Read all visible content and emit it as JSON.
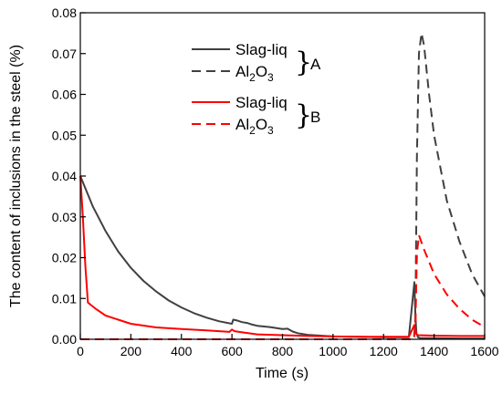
{
  "chart_data": {
    "type": "line",
    "xlabel": "Time (s)",
    "ylabel": "The content of inclusions in the steel (%)",
    "xlim": [
      0,
      1600
    ],
    "ylim": [
      0,
      0.08
    ],
    "xticks": [
      "0",
      "200",
      "400",
      "600",
      "800",
      "1000",
      "1200",
      "1400",
      "1600"
    ],
    "yticks": [
      "0.00",
      "0.01",
      "0.02",
      "0.03",
      "0.04",
      "0.05",
      "0.06",
      "0.07",
      "0.08"
    ],
    "grid": false,
    "legend_position": "top-center",
    "legend_groups": [
      {
        "label": "A",
        "entries": [
          "Slag-liq",
          "Al2O3"
        ]
      },
      {
        "label": "B",
        "entries": [
          "Slag-liq",
          "Al2O3"
        ]
      }
    ],
    "series": [
      {
        "name": "Slag-liq",
        "group": "A",
        "color": "#404040",
        "dash": "solid",
        "x": [
          0,
          50,
          100,
          150,
          200,
          250,
          300,
          350,
          400,
          450,
          500,
          550,
          600,
          605,
          620,
          640,
          660,
          680,
          700,
          750,
          800,
          820,
          840,
          860,
          900,
          950,
          1000,
          1100,
          1200,
          1300,
          1322,
          1326,
          1330,
          1336,
          1345,
          1400,
          1500,
          1600
        ],
        "y": [
          0.04,
          0.0325,
          0.0265,
          0.0215,
          0.0175,
          0.0143,
          0.0117,
          0.0095,
          0.0078,
          0.0064,
          0.0053,
          0.0044,
          0.0038,
          0.0048,
          0.0046,
          0.0042,
          0.004,
          0.0036,
          0.0033,
          0.003,
          0.0025,
          0.0026,
          0.0019,
          0.0015,
          0.0011,
          0.0009,
          0.0007,
          0.0006,
          0.0005,
          0.0005,
          0.014,
          0.006,
          0.0015,
          0.0005,
          0.0003,
          0.0003,
          0.0002,
          0.0002
        ]
      },
      {
        "name": "Al2O3",
        "group": "A",
        "color": "#404040",
        "dash": "dashed",
        "x": [
          0,
          100,
          200,
          400,
          600,
          800,
          1000,
          1200,
          1320,
          1326,
          1332,
          1340,
          1350,
          1360,
          1380,
          1400,
          1450,
          1500,
          1550,
          1600
        ],
        "y": [
          0,
          0,
          0,
          0,
          0,
          0,
          0,
          0,
          0,
          0.005,
          0.045,
          0.07,
          0.075,
          0.072,
          0.06,
          0.05,
          0.034,
          0.024,
          0.016,
          0.0105
        ]
      },
      {
        "name": "Slag-liq",
        "group": "B",
        "color": "#ff0000",
        "dash": "solid",
        "x": [
          0,
          10,
          20,
          30,
          40,
          60,
          100,
          200,
          300,
          400,
          500,
          590,
          600,
          610,
          650,
          700,
          800,
          900,
          1000,
          1100,
          1200,
          1300,
          1322,
          1326,
          1330,
          1336,
          1400,
          1500,
          1600
        ],
        "y": [
          0.04,
          0.03,
          0.018,
          0.009,
          0.0085,
          0.0075,
          0.0058,
          0.0038,
          0.0029,
          0.0025,
          0.0022,
          0.0018,
          0.0024,
          0.002,
          0.0016,
          0.0012,
          0.001,
          0.0008,
          0.0007,
          0.0006,
          0.0006,
          0.0006,
          0.0035,
          0.0025,
          0.0013,
          0.001,
          0.0009,
          0.0008,
          0.0008
        ]
      },
      {
        "name": "Al2O3",
        "group": "B",
        "color": "#ff0000",
        "dash": "dashed",
        "x": [
          0,
          100,
          200,
          400,
          600,
          800,
          1000,
          1200,
          1320,
          1326,
          1332,
          1340,
          1360,
          1400,
          1450,
          1500,
          1550,
          1600
        ],
        "y": [
          0,
          0,
          0,
          0,
          0,
          0,
          0,
          0,
          0,
          0.003,
          0.021,
          0.0255,
          0.022,
          0.016,
          0.011,
          0.0075,
          0.0048,
          0.003
        ]
      }
    ]
  }
}
